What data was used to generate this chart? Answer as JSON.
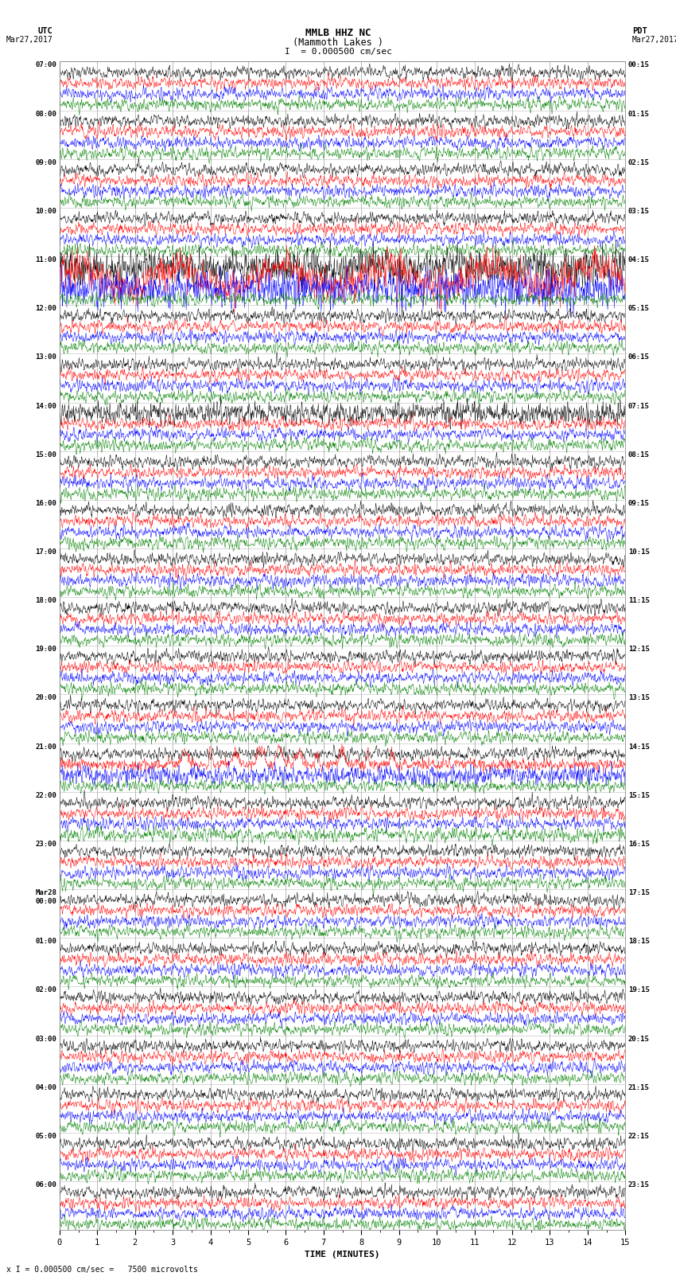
{
  "title_line1": "MMLB HHZ NC",
  "title_line2": "(Mammoth Lakes )",
  "title_line3": "I  = 0.000500 cm/sec",
  "left_label_top": "UTC",
  "left_label_date": "Mar27,2017",
  "right_label_top": "PDT",
  "right_label_date": "Mar27,2017",
  "xlabel": "TIME (MINUTES)",
  "footer": "x I = 0.000500 cm/sec =   7500 microvolts",
  "bg_color": "#ffffff",
  "trace_colors": [
    "black",
    "red",
    "blue",
    "green"
  ],
  "grid_color": "#888888",
  "utc_labels": [
    "07:00",
    "08:00",
    "09:00",
    "10:00",
    "11:00",
    "12:00",
    "13:00",
    "14:00",
    "15:00",
    "16:00",
    "17:00",
    "18:00",
    "19:00",
    "20:00",
    "21:00",
    "22:00",
    "23:00",
    "Mar28\n00:00",
    "01:00",
    "02:00",
    "03:00",
    "04:00",
    "05:00",
    "06:00"
  ],
  "pdt_labels": [
    "00:15",
    "01:15",
    "02:15",
    "03:15",
    "04:15",
    "05:15",
    "06:15",
    "07:15",
    "08:15",
    "09:15",
    "10:15",
    "11:15",
    "12:15",
    "13:15",
    "14:15",
    "15:15",
    "16:15",
    "17:15",
    "18:15",
    "19:15",
    "20:15",
    "21:15",
    "22:15",
    "23:15"
  ],
  "minutes_per_row": 15,
  "num_rows": 24,
  "traces_per_row": 4,
  "noise_seed": 42
}
